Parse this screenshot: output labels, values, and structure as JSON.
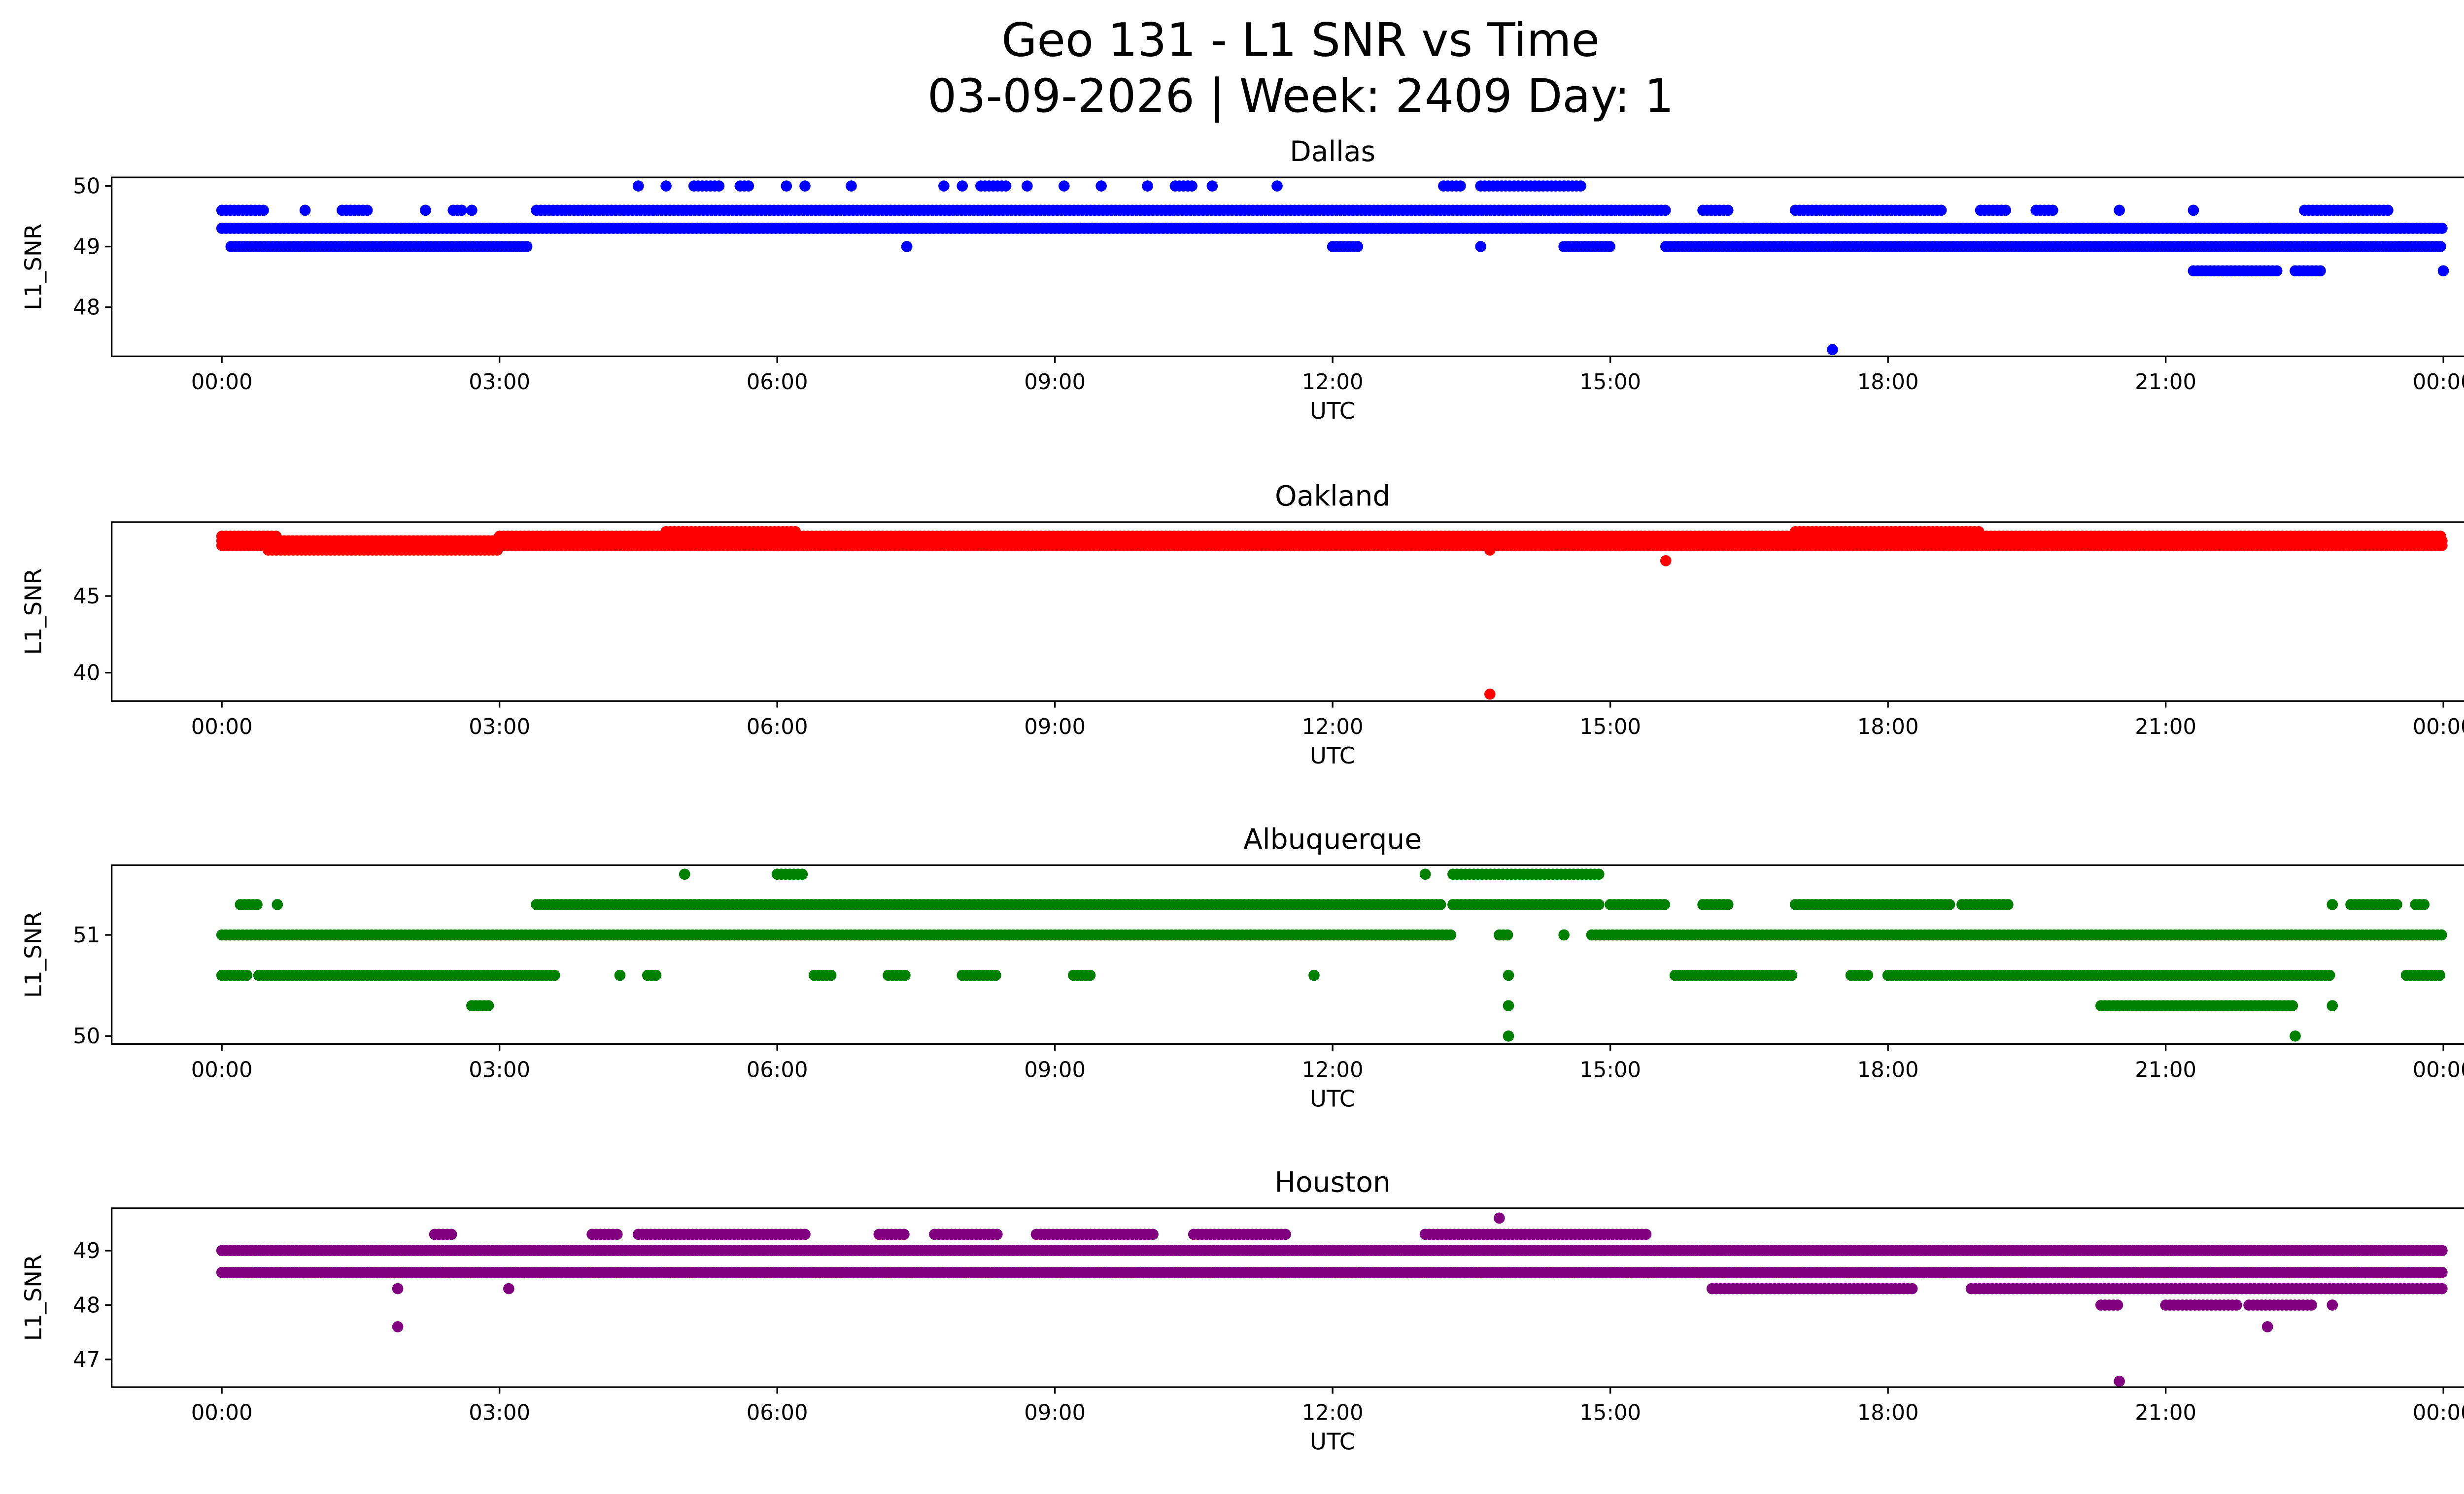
{
  "chart_data": {
    "type": "scatter",
    "title": "Geo 131 - L1 SNR vs Time",
    "subtitle": "03-09-2026 | Week: 2409 Day: 1",
    "x_unit": "hours UTC",
    "xlim": [
      -1.19,
      25.19
    ],
    "x_ticks": [
      {
        "value": 0,
        "label": "00:00"
      },
      {
        "value": 3,
        "label": "03:00"
      },
      {
        "value": 6,
        "label": "06:00"
      },
      {
        "value": 9,
        "label": "09:00"
      },
      {
        "value": 12,
        "label": "12:00"
      },
      {
        "value": 15,
        "label": "15:00"
      },
      {
        "value": 18,
        "label": "18:00"
      },
      {
        "value": 21,
        "label": "21:00"
      },
      {
        "value": 24,
        "label": "00:00"
      }
    ],
    "panels": [
      {
        "title": "Dallas",
        "xlabel": "UTC",
        "ylabel": "L1_SNR",
        "color": "#0000ff",
        "ylim": [
          47.19,
          50.14
        ],
        "y_ticks": [
          {
            "value": 48,
            "label": "48"
          },
          {
            "value": 49,
            "label": "49"
          },
          {
            "value": 50,
            "label": "50"
          }
        ],
        "bands": [
          {
            "y": 49.3,
            "ranges": [
              [
                0,
                24
              ]
            ]
          },
          {
            "y": 49.6,
            "ranges": [
              [
                0,
                0.45
              ],
              [
                0.9,
                0.9
              ],
              [
                1.3,
                1.6
              ],
              [
                2.2,
                2.2
              ],
              [
                2.5,
                2.6
              ],
              [
                2.7,
                2.7
              ],
              [
                3.4,
                15.6
              ],
              [
                16,
                16.3
              ],
              [
                17,
                18.6
              ],
              [
                19,
                19.3
              ],
              [
                19.6,
                19.8
              ],
              [
                20.5,
                20.5
              ],
              [
                21.3,
                21.3
              ],
              [
                22.5,
                23.4
              ]
            ]
          },
          {
            "y": 49.0,
            "ranges": [
              [
                0.1,
                3.3
              ],
              [
                7.4,
                7.4
              ],
              [
                12,
                12.3
              ],
              [
                13.6,
                13.6
              ],
              [
                14.5,
                15
              ],
              [
                15.6,
                24
              ]
            ]
          },
          {
            "y": 50.0,
            "ranges": [
              [
                4.5,
                4.5
              ],
              [
                4.8,
                4.8
              ],
              [
                5.1,
                5.4
              ],
              [
                5.6,
                5.7
              ],
              [
                6.1,
                6.1
              ],
              [
                6.3,
                6.3
              ],
              [
                6.8,
                6.8
              ],
              [
                7.8,
                7.8
              ],
              [
                8,
                8
              ],
              [
                8.2,
                8.5
              ],
              [
                8.7,
                8.7
              ],
              [
                9.1,
                9.1
              ],
              [
                9.5,
                9.5
              ],
              [
                10,
                10
              ],
              [
                10.3,
                10.5
              ],
              [
                10.7,
                10.7
              ],
              [
                11.4,
                11.4
              ],
              [
                13.2,
                13.4
              ],
              [
                13.6,
                14.7
              ]
            ]
          },
          {
            "y": 48.6,
            "ranges": [
              [
                21.3,
                22.2
              ],
              [
                22.4,
                22.7
              ],
              [
                24,
                24
              ]
            ]
          },
          {
            "y": 47.3,
            "ranges": [
              [
                17.4,
                17.4
              ]
            ]
          }
        ]
      },
      {
        "title": "Oakland",
        "xlabel": "UTC",
        "ylabel": "L1_SNR",
        "color": "#ff0000",
        "ylim": [
          38.15,
          49.82
        ],
        "y_ticks": [
          {
            "value": 40,
            "label": "40"
          },
          {
            "value": 45,
            "label": "45"
          }
        ],
        "bands": [
          {
            "y": 48.3,
            "ranges": [
              [
                0,
                24
              ]
            ]
          },
          {
            "y": 48.6,
            "ranges": [
              [
                0,
                24
              ]
            ]
          },
          {
            "y": 48.9,
            "ranges": [
              [
                0,
                0.6
              ],
              [
                3,
                24
              ]
            ]
          },
          {
            "y": 49.2,
            "ranges": [
              [
                4.8,
                6.2
              ],
              [
                17,
                19
              ]
            ]
          },
          {
            "y": 48.0,
            "ranges": [
              [
                0.5,
                3
              ],
              [
                13.7,
                13.7
              ]
            ]
          },
          {
            "y": 47.3,
            "ranges": [
              [
                15.6,
                15.6
              ]
            ]
          },
          {
            "y": 38.6,
            "ranges": [
              [
                13.7,
                13.7
              ]
            ]
          }
        ]
      },
      {
        "title": "Albuquerque",
        "xlabel": "UTC",
        "ylabel": "L1_SNR",
        "color": "#008000",
        "ylim": [
          49.92,
          51.69
        ],
        "y_ticks": [
          {
            "value": 50,
            "label": "50"
          },
          {
            "value": 51,
            "label": "51"
          }
        ],
        "bands": [
          {
            "y": 51.0,
            "ranges": [
              [
                0,
                13.3
              ],
              [
                13.8,
                13.9
              ],
              [
                14.5,
                14.5
              ],
              [
                14.8,
                24
              ]
            ]
          },
          {
            "y": 51.3,
            "ranges": [
              [
                0.2,
                0.4
              ],
              [
                0.6,
                0.6
              ],
              [
                3.4,
                13.2
              ],
              [
                13.3,
                14.9
              ],
              [
                15,
                15.6
              ],
              [
                16,
                16.3
              ],
              [
                17,
                18.7
              ],
              [
                18.8,
                19.3
              ],
              [
                22.8,
                22.8
              ],
              [
                23,
                23.5
              ],
              [
                23.7,
                23.8
              ]
            ]
          },
          {
            "y": 50.6,
            "ranges": [
              [
                0,
                0.3
              ],
              [
                0.4,
                3.6
              ],
              [
                4.3,
                4.3
              ],
              [
                4.6,
                4.7
              ],
              [
                6.4,
                6.6
              ],
              [
                7.2,
                7.4
              ],
              [
                8.0,
                8.4
              ],
              [
                9.2,
                9.4
              ],
              [
                11.8,
                11.8
              ],
              [
                13.9,
                13.9
              ],
              [
                15.7,
                17.0
              ],
              [
                17.6,
                17.8
              ],
              [
                18.0,
                22.8
              ],
              [
                23.6,
                24
              ]
            ]
          },
          {
            "y": 51.6,
            "ranges": [
              [
                5.0,
                5.0
              ],
              [
                6.0,
                6.3
              ],
              [
                13.0,
                13.0
              ],
              [
                13.3,
                14.9
              ]
            ]
          },
          {
            "y": 50.3,
            "ranges": [
              [
                2.7,
                2.9
              ],
              [
                13.9,
                13.9
              ],
              [
                20.3,
                22.4
              ],
              [
                22.8,
                22.8
              ]
            ]
          },
          {
            "y": 50.0,
            "ranges": [
              [
                13.9,
                13.9
              ],
              [
                22.4,
                22.4
              ]
            ]
          }
        ]
      },
      {
        "title": "Houston",
        "xlabel": "UTC",
        "ylabel": "L1_SNR",
        "color": "#800080",
        "ylim": [
          46.49,
          49.78
        ],
        "y_ticks": [
          {
            "value": 47,
            "label": "47"
          },
          {
            "value": 48,
            "label": "48"
          },
          {
            "value": 49,
            "label": "49"
          }
        ],
        "bands": [
          {
            "y": 48.6,
            "ranges": [
              [
                0,
                24
              ]
            ]
          },
          {
            "y": 49.0,
            "ranges": [
              [
                0,
                24
              ]
            ]
          },
          {
            "y": 49.3,
            "ranges": [
              [
                2.3,
                2.5
              ],
              [
                4,
                4.3
              ],
              [
                4.5,
                6.3
              ],
              [
                7.1,
                7.4
              ],
              [
                7.7,
                8.4
              ],
              [
                8.8,
                10.1
              ],
              [
                10.5,
                11.5
              ],
              [
                13,
                15.4
              ]
            ]
          },
          {
            "y": 48.3,
            "ranges": [
              [
                1.9,
                1.9
              ],
              [
                3.1,
                3.1
              ],
              [
                16.1,
                18.3
              ],
              [
                18.9,
                24
              ]
            ]
          },
          {
            "y": 48.0,
            "ranges": [
              [
                20.3,
                20.5
              ],
              [
                21.0,
                21.8
              ],
              [
                21.9,
                22.6
              ],
              [
                22.8,
                22.8
              ]
            ]
          },
          {
            "y": 47.6,
            "ranges": [
              [
                1.9,
                1.9
              ],
              [
                22.1,
                22.1
              ]
            ]
          },
          {
            "y": 49.6,
            "ranges": [
              [
                13.8,
                13.8
              ]
            ]
          },
          {
            "y": 46.6,
            "ranges": [
              [
                20.5,
                20.5
              ]
            ]
          }
        ]
      }
    ]
  }
}
